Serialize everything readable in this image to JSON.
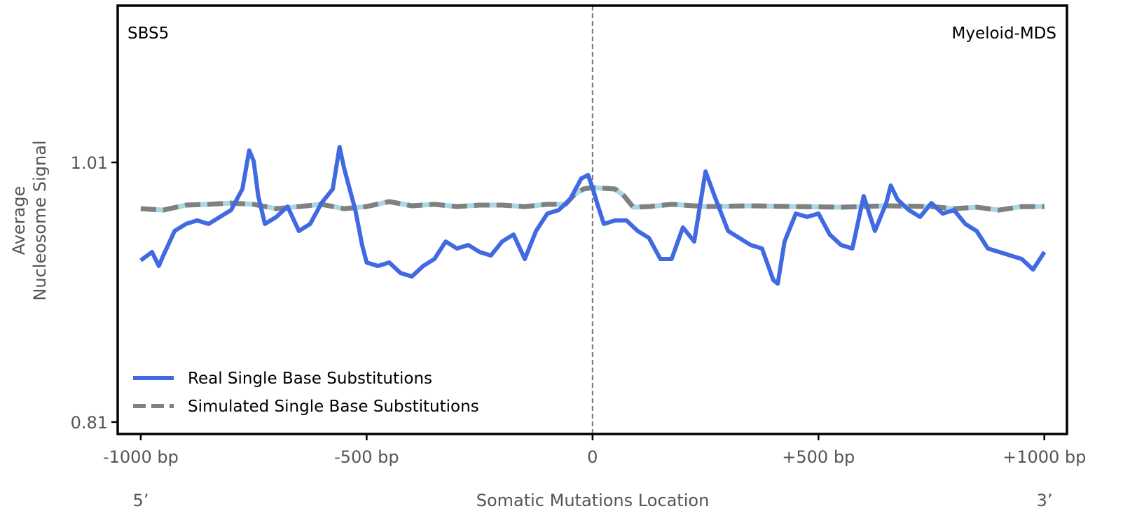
{
  "chart_data": {
    "type": "line",
    "title_left": "SBS5",
    "title_right": "Myeloid-MDS",
    "xlabel": "Somatic Mutations Location",
    "ylabel": [
      "Average",
      "Nucleosome Signal"
    ],
    "x_end_labels": {
      "left": "5’",
      "right": "3’"
    },
    "xlim": [
      -1051,
      1050
    ],
    "ylim": [
      0.8008,
      1.1308
    ],
    "xticks": [
      {
        "value": -1000,
        "label": "-1000 bp"
      },
      {
        "value": -500,
        "label": "-500 bp"
      },
      {
        "value": 0,
        "label": "0"
      },
      {
        "value": 500,
        "label": "+500 bp"
      },
      {
        "value": 1000,
        "label": "+1000 bp"
      }
    ],
    "yticks": [
      {
        "value": 1.01,
        "label": "1.01"
      },
      {
        "value": 0.81,
        "label": "0.81"
      }
    ],
    "vline": 0,
    "legend_position": "bottom-left",
    "series": [
      {
        "name": "Real Single Base Substitutions",
        "color": "#4169e1",
        "style": "solid",
        "x": [
          -1000,
          -975,
          -960,
          -950,
          -925,
          -900,
          -875,
          -850,
          -825,
          -800,
          -775,
          -760,
          -750,
          -740,
          -725,
          -700,
          -675,
          -650,
          -625,
          -600,
          -575,
          -560,
          -550,
          -525,
          -510,
          -500,
          -475,
          -450,
          -425,
          -400,
          -375,
          -350,
          -325,
          -300,
          -275,
          -250,
          -225,
          -200,
          -175,
          -150,
          -125,
          -100,
          -75,
          -50,
          -25,
          -10,
          0,
          10,
          25,
          50,
          75,
          100,
          125,
          150,
          175,
          200,
          225,
          250,
          270,
          300,
          325,
          350,
          375,
          400,
          410,
          425,
          450,
          475,
          500,
          525,
          550,
          575,
          600,
          625,
          650,
          660,
          675,
          700,
          725,
          750,
          775,
          800,
          825,
          850,
          875,
          900,
          925,
          950,
          975,
          1000
        ],
        "y": [
          0.9345,
          0.941,
          0.9302,
          0.9383,
          0.9572,
          0.9626,
          0.9653,
          0.9626,
          0.968,
          0.9733,
          0.9895,
          1.0192,
          1.0111,
          0.9841,
          0.9626,
          0.968,
          0.976,
          0.9572,
          0.9626,
          0.9787,
          0.9895,
          1.0219,
          1.0057,
          0.9733,
          0.9464,
          0.9329,
          0.9302,
          0.9329,
          0.9248,
          0.9221,
          0.9302,
          0.9356,
          0.9491,
          0.9437,
          0.9464,
          0.941,
          0.9383,
          0.9491,
          0.9545,
          0.9356,
          0.9572,
          0.9706,
          0.9733,
          0.9814,
          0.9976,
          1.0003,
          0.9906,
          0.9787,
          0.9626,
          0.9653,
          0.9653,
          0.9572,
          0.9518,
          0.9356,
          0.9356,
          0.9599,
          0.9491,
          1.003,
          0.9841,
          0.9572,
          0.9518,
          0.9464,
          0.9437,
          0.9194,
          0.9167,
          0.9491,
          0.9706,
          0.968,
          0.9706,
          0.9545,
          0.9464,
          0.9437,
          0.9841,
          0.9572,
          0.9787,
          0.9922,
          0.9814,
          0.9733,
          0.968,
          0.9787,
          0.9706,
          0.9733,
          0.9626,
          0.9572,
          0.9437,
          0.941,
          0.9383,
          0.9356,
          0.9275,
          0.941
        ]
      },
      {
        "name": "Simulated Single Base Substitutions",
        "color": "#808080",
        "underlay_color": "#a8d8e6",
        "style": "dashed",
        "x": [
          -1000,
          -950,
          -900,
          -850,
          -800,
          -750,
          -700,
          -650,
          -600,
          -550,
          -500,
          -450,
          -400,
          -350,
          -300,
          -250,
          -200,
          -150,
          -100,
          -60,
          -40,
          -20,
          0,
          50,
          70,
          90,
          125,
          175,
          250,
          350,
          450,
          550,
          650,
          750,
          800,
          850,
          900,
          950,
          1000
        ],
        "y": [
          0.9744,
          0.9733,
          0.9771,
          0.9777,
          0.9787,
          0.9777,
          0.9744,
          0.976,
          0.9777,
          0.9744,
          0.976,
          0.9798,
          0.9766,
          0.9777,
          0.976,
          0.9771,
          0.9771,
          0.976,
          0.9777,
          0.9777,
          0.9852,
          0.9895,
          0.9906,
          0.9895,
          0.9841,
          0.9755,
          0.976,
          0.9777,
          0.976,
          0.9766,
          0.976,
          0.9755,
          0.9766,
          0.976,
          0.9744,
          0.9755,
          0.9733,
          0.976,
          0.976
        ]
      }
    ]
  }
}
